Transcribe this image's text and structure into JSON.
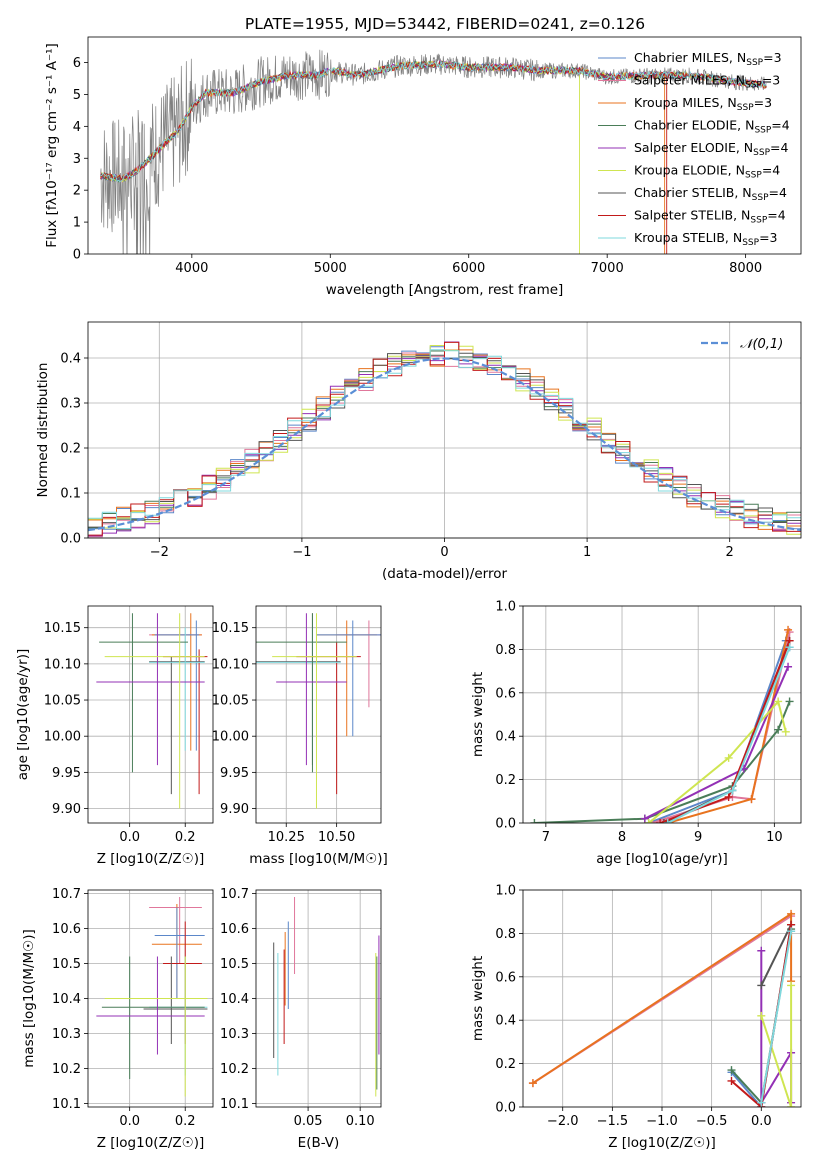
{
  "figure_title": "PLATE=1955, MJD=53442, FIBERID=0241, z=0.126",
  "colors": {
    "c1": "#5b87c9",
    "c2": "#e0779b",
    "c3": "#e8731f",
    "c4": "#4a7d58",
    "c5": "#9330b5",
    "c6": "#cfe551",
    "c7": "#555555",
    "c8": "#c21a1a",
    "c9": "#7fd8dd",
    "gray": "#808080",
    "cyan": "#7fd3d8"
  },
  "chart_data": [
    {
      "type": "line",
      "xlabel": "wavelength [Angstrom, rest frame]",
      "ylabel": "Flux [fλ10⁻¹⁷ erg cm⁻² s⁻¹ A⁻¹]",
      "xlim": [
        3250,
        8400
      ],
      "ylim": [
        0,
        6.8
      ],
      "xticks": [
        4000,
        5000,
        6000,
        7000,
        8000
      ],
      "yticks": [
        0,
        1,
        2,
        3,
        4,
        5,
        6
      ],
      "legend_position": "top-right",
      "grid": false,
      "continuum": [
        [
          3340,
          2.45
        ],
        [
          3500,
          2.35
        ],
        [
          3600,
          2.6
        ],
        [
          3700,
          3.0
        ],
        [
          3800,
          3.45
        ],
        [
          3900,
          3.85
        ],
        [
          4000,
          4.6
        ],
        [
          4100,
          5.05
        ],
        [
          4300,
          5.05
        ],
        [
          4500,
          5.4
        ],
        [
          4700,
          5.6
        ],
        [
          4900,
          5.6
        ],
        [
          5000,
          5.75
        ],
        [
          5200,
          5.6
        ],
        [
          5500,
          5.9
        ],
        [
          5800,
          5.95
        ],
        [
          6000,
          5.85
        ],
        [
          6300,
          5.85
        ],
        [
          6500,
          5.75
        ],
        [
          6800,
          5.75
        ],
        [
          7000,
          5.55
        ],
        [
          7300,
          5.6
        ],
        [
          7600,
          5.6
        ],
        [
          7900,
          5.4
        ],
        [
          8150,
          5.3
        ]
      ],
      "series": [
        {
          "name": "Chabrier MILES, N_SSP=3",
          "color": "#5b87c9"
        },
        {
          "name": "Salpeter MILES, N_SSP=3",
          "color": "#e0779b"
        },
        {
          "name": "Kroupa MILES, N_SSP=3",
          "color": "#e8731f"
        },
        {
          "name": "Chabrier ELODIE, N_SSP=4",
          "color": "#4a7d58"
        },
        {
          "name": "Salpeter ELODIE, N_SSP=4",
          "color": "#9330b5"
        },
        {
          "name": "Kroupa ELODIE, N_SSP=4",
          "color": "#cfe551"
        },
        {
          "name": "Chabrier STELIB, N_SSP=4",
          "color": "#555555"
        },
        {
          "name": "Salpeter STELIB, N_SSP=4",
          "color": "#c21a1a"
        },
        {
          "name": "Kroupa STELIB, N_SSP=3",
          "color": "#7fd8dd"
        }
      ]
    },
    {
      "type": "line",
      "xlabel": "(data-model)/error",
      "ylabel": "Normed distribution",
      "xlim": [
        -2.5,
        2.5
      ],
      "ylim": [
        0,
        0.48
      ],
      "xticks": [
        -2,
        -1,
        0,
        1,
        2
      ],
      "yticks": [
        0.0,
        0.1,
        0.2,
        0.3,
        0.4
      ],
      "grid": true,
      "legend": "𝒩(0,1)",
      "legend_position": "top-right",
      "normal_curve": {
        "mu": 0,
        "sigma": 1,
        "color": "#5b8fd6"
      }
    },
    {
      "type": "scatter",
      "xlabel": "Z [log10(Z/Z☉)]",
      "ylabel": "age [log10(age/yr)]",
      "xlim": [
        -0.15,
        0.3
      ],
      "ylim": [
        9.88,
        10.18
      ],
      "xticks": [
        0.0,
        0.2
      ],
      "yticks": [
        9.9,
        9.95,
        10.0,
        10.05,
        10.1,
        10.15
      ],
      "grid": true,
      "points": [
        {
          "x": 0.18,
          "y": 10.14,
          "xe": [
            0.07,
            0.26
          ],
          "ye": [
            10.14,
            10.15
          ],
          "c": "#e0779b"
        },
        {
          "x": 0.22,
          "y": 10.14,
          "xe": [
            0.08,
            0.26
          ],
          "ye": [
            9.98,
            10.17
          ],
          "c": "#e8731f"
        },
        {
          "x": 0.24,
          "y": 10.14,
          "xe": [
            0.09,
            0.25
          ],
          "ye": [
            9.98,
            10.16
          ],
          "c": "#5b87c9"
        },
        {
          "x": 0.25,
          "y": 10.11,
          "xe": [
            0.12,
            0.28
          ],
          "ye": [
            9.92,
            10.12
          ],
          "c": "#c21a1a"
        },
        {
          "x": 0.15,
          "y": 10.103,
          "xe": [
            0.07,
            0.27
          ],
          "ye": [
            9.92,
            10.11
          ],
          "c": "#555555"
        },
        {
          "x": 0.2,
          "y": 10.102,
          "xe": [
            0.07,
            0.27
          ],
          "ye": [
            9.98,
            10.15
          ],
          "c": "#7fd8dd"
        },
        {
          "x": 0.01,
          "y": 10.13,
          "xe": [
            -0.11,
            0.21
          ],
          "ye": [
            9.95,
            10.17
          ],
          "c": "#4a7d58"
        },
        {
          "x": 0.1,
          "y": 10.075,
          "xe": [
            -0.12,
            0.27
          ],
          "ye": [
            9.96,
            10.17
          ],
          "c": "#9330b5"
        },
        {
          "x": 0.18,
          "y": 10.11,
          "xe": [
            -0.09,
            0.27
          ],
          "ye": [
            9.9,
            10.17
          ],
          "c": "#cfe551"
        }
      ]
    },
    {
      "type": "scatter",
      "xlabel": "mass [log10(M/M☉)]",
      "ylabel": "",
      "xlim": [
        10.1,
        10.72
      ],
      "ylim": [
        9.88,
        10.18
      ],
      "xticks": [
        10.25,
        10.5
      ],
      "yticks": [
        9.9,
        9.95,
        10.0,
        10.05,
        10.1,
        10.15
      ],
      "grid": true,
      "points": [
        {
          "x": 10.66,
          "y": 10.14,
          "xe": [
            10.5,
            10.72
          ],
          "ye": [
            10.04,
            10.16
          ],
          "c": "#e0779b"
        },
        {
          "x": 10.55,
          "y": 10.14,
          "xe": [
            10.4,
            10.7
          ],
          "ye": [
            10.0,
            10.16
          ],
          "c": "#e8731f"
        },
        {
          "x": 10.58,
          "y": 10.14,
          "xe": [
            10.4,
            10.72
          ],
          "ye": [
            10.0,
            10.16
          ],
          "c": "#5b87c9"
        },
        {
          "x": 10.5,
          "y": 10.11,
          "xe": [
            10.3,
            10.62
          ],
          "ye": [
            9.92,
            10.13
          ],
          "c": "#c21a1a"
        },
        {
          "x": 10.38,
          "y": 10.103,
          "xe": [
            10.1,
            10.52
          ],
          "ye": [
            9.96,
            10.17
          ],
          "c": "#555555"
        },
        {
          "x": 10.38,
          "y": 10.102,
          "xe": [
            10.1,
            10.52
          ],
          "ye": [
            9.98,
            10.15
          ],
          "c": "#7fd8dd"
        },
        {
          "x": 10.38,
          "y": 10.13,
          "xe": [
            10.1,
            10.55
          ],
          "ye": [
            9.95,
            10.17
          ],
          "c": "#4a7d58"
        },
        {
          "x": 10.35,
          "y": 10.075,
          "xe": [
            10.2,
            10.55
          ],
          "ye": [
            9.96,
            10.17
          ],
          "c": "#9330b5"
        },
        {
          "x": 10.4,
          "y": 10.11,
          "xe": [
            10.18,
            10.6
          ],
          "ye": [
            9.9,
            10.17
          ],
          "c": "#cfe551"
        }
      ]
    },
    {
      "type": "line",
      "xlabel": "age [log10(age/yr)]",
      "ylabel": "mass weight",
      "xlim": [
        6.7,
        10.35
      ],
      "ylim": [
        0,
        1
      ],
      "xticks": [
        7,
        8,
        9,
        10
      ],
      "yticks": [
        0.0,
        0.2,
        0.4,
        0.6,
        0.8,
        1.0
      ],
      "grid": true,
      "series": [
        {
          "c": "#5b87c9",
          "x": [
            8.35,
            9.45,
            10.15,
            10.2
          ],
          "y": [
            0.0,
            0.15,
            0.84,
            0.81
          ]
        },
        {
          "c": "#e0779b",
          "x": [
            8.4,
            9.45,
            9.7,
            10.2
          ],
          "y": [
            0.0,
            0.12,
            0.11,
            0.88
          ]
        },
        {
          "c": "#e8731f",
          "x": [
            8.6,
            9.7,
            10.18
          ],
          "y": [
            0.0,
            0.11,
            0.89
          ]
        },
        {
          "c": "#4a7d58",
          "x": [
            6.85,
            8.3,
            9.45,
            10.05,
            10.2
          ],
          "y": [
            0.0,
            0.02,
            0.17,
            0.43,
            0.56
          ]
        },
        {
          "c": "#9330b5",
          "x": [
            8.3,
            9.6,
            10.18
          ],
          "y": [
            0.02,
            0.25,
            0.72
          ]
        },
        {
          "c": "#cfe551",
          "x": [
            8.35,
            9.4,
            10.05,
            10.15
          ],
          "y": [
            0.0,
            0.3,
            0.56,
            0.42
          ]
        },
        {
          "c": "#555555",
          "x": [
            8.55,
            9.45,
            10.2
          ],
          "y": [
            0.0,
            0.15,
            0.84
          ]
        },
        {
          "c": "#c21a1a",
          "x": [
            8.5,
            9.4,
            10.2
          ],
          "y": [
            0.0,
            0.12,
            0.84
          ]
        },
        {
          "c": "#7fd8dd",
          "x": [
            8.6,
            9.45,
            10.2
          ],
          "y": [
            0.0,
            0.15,
            0.81
          ]
        }
      ]
    },
    {
      "type": "scatter",
      "xlabel": "Z [log10(Z/Z☉)]",
      "ylabel": "mass [log10(M/M☉)]",
      "xlim": [
        -0.15,
        0.3
      ],
      "ylim": [
        10.09,
        10.71
      ],
      "xticks": [
        0.0,
        0.2
      ],
      "yticks": [
        10.1,
        10.2,
        10.3,
        10.4,
        10.5,
        10.6,
        10.7
      ],
      "grid": true,
      "points": [
        {
          "x": 0.18,
          "y": 10.66,
          "xe": [
            0.07,
            0.26
          ],
          "ye": [
            10.5,
            10.69
          ],
          "c": "#e0779b"
        },
        {
          "x": 0.17,
          "y": 10.555,
          "xe": [
            0.08,
            0.26
          ],
          "ye": [
            10.4,
            10.67
          ],
          "c": "#e8731f"
        },
        {
          "x": 0.17,
          "y": 10.58,
          "xe": [
            0.09,
            0.27
          ],
          "ye": [
            10.4,
            10.66
          ],
          "c": "#5b87c9"
        },
        {
          "x": 0.2,
          "y": 10.5,
          "xe": [
            0.12,
            0.26
          ],
          "ye": [
            10.27,
            10.62
          ],
          "c": "#c21a1a"
        },
        {
          "x": 0.15,
          "y": 10.37,
          "xe": [
            0.05,
            0.28
          ],
          "ye": [
            10.27,
            10.52
          ],
          "c": "#555555"
        },
        {
          "x": 0.2,
          "y": 10.375,
          "xe": [
            0.07,
            0.28
          ],
          "ye": [
            10.18,
            10.52
          ],
          "c": "#7fd8dd"
        },
        {
          "x": 0.0,
          "y": 10.375,
          "xe": [
            -0.1,
            0.27
          ],
          "ye": [
            10.17,
            10.52
          ],
          "c": "#4a7d58"
        },
        {
          "x": 0.1,
          "y": 10.35,
          "xe": [
            -0.12,
            0.27
          ],
          "ye": [
            10.24,
            10.52
          ],
          "c": "#9330b5"
        },
        {
          "x": 0.2,
          "y": 10.4,
          "xe": [
            -0.09,
            0.28
          ],
          "ye": [
            10.12,
            10.52
          ],
          "c": "#cfe551"
        }
      ]
    },
    {
      "type": "scatter",
      "xlabel": "E(B-V)",
      "ylabel": "",
      "xlim": [
        0.0,
        0.12
      ],
      "ylim": [
        10.09,
        10.71
      ],
      "xticks": [
        0.05,
        0.1
      ],
      "yticks": [
        10.1,
        10.2,
        10.3,
        10.4,
        10.5,
        10.6,
        10.7
      ],
      "grid": true,
      "points": [
        {
          "x": 0.037,
          "y": 10.66,
          "ye": [
            10.47,
            10.69
          ],
          "c": "#e0779b"
        },
        {
          "x": 0.028,
          "y": 10.555,
          "ye": [
            10.38,
            10.59
          ],
          "c": "#e8731f"
        },
        {
          "x": 0.031,
          "y": 10.58,
          "ye": [
            10.37,
            10.62
          ],
          "c": "#5b87c9"
        },
        {
          "x": 0.027,
          "y": 10.5,
          "ye": [
            10.27,
            10.54
          ],
          "c": "#c21a1a"
        },
        {
          "x": 0.017,
          "y": 10.37,
          "ye": [
            10.23,
            10.56
          ],
          "c": "#555555"
        },
        {
          "x": 0.021,
          "y": 10.375,
          "ye": [
            10.18,
            10.53
          ],
          "c": "#7fd8dd"
        },
        {
          "x": 0.116,
          "y": 10.375,
          "ye": [
            10.14,
            10.52
          ],
          "c": "#4a7d58"
        },
        {
          "x": 0.118,
          "y": 10.35,
          "ye": [
            10.24,
            10.58
          ],
          "c": "#9330b5"
        },
        {
          "x": 0.115,
          "y": 10.4,
          "ye": [
            10.12,
            10.53
          ],
          "c": "#cfe551"
        }
      ]
    },
    {
      "type": "line",
      "xlabel": "Z [log10(Z/Z☉)]",
      "ylabel": "mass weight",
      "xlim": [
        -2.4,
        0.4
      ],
      "ylim": [
        0,
        1
      ],
      "xticks": [
        -2.0,
        -1.5,
        -1.0,
        -0.5,
        0.0
      ],
      "yticks": [
        0.0,
        0.2,
        0.4,
        0.6,
        0.8,
        1.0
      ],
      "grid": true,
      "series": [
        {
          "c": "#5b87c9",
          "x": [
            -0.3,
            0.0,
            0.3,
            0.3
          ],
          "y": [
            0.16,
            0.0,
            0.84,
            0.81
          ]
        },
        {
          "c": "#e0779b",
          "x": [
            -2.3,
            0.3
          ],
          "y": [
            0.11,
            0.88
          ]
        },
        {
          "c": "#e8731f",
          "x": [
            -2.3,
            0.3,
            0.3
          ],
          "y": [
            0.11,
            0.89,
            0.58
          ]
        },
        {
          "c": "#4a7d58",
          "x": [
            -0.3,
            0.0,
            0.3
          ],
          "y": [
            0.17,
            0.02,
            0.82
          ]
        },
        {
          "c": "#9330b5",
          "x": [
            0.0,
            0.0,
            0.3,
            0.3
          ],
          "y": [
            0.72,
            0.02,
            0.25,
            0.02
          ]
        },
        {
          "c": "#cfe551",
          "x": [
            0.0,
            0.3,
            0.3
          ],
          "y": [
            0.42,
            0.0,
            0.56
          ]
        },
        {
          "c": "#555555",
          "x": [
            0.0,
            0.3
          ],
          "y": [
            0.56,
            0.84
          ]
        },
        {
          "c": "#c21a1a",
          "x": [
            -0.3,
            0.0,
            0.3
          ],
          "y": [
            0.12,
            0.0,
            0.84
          ]
        },
        {
          "c": "#7fd8dd",
          "x": [
            0.0,
            0.3
          ],
          "y": [
            0.02,
            0.81
          ]
        }
      ]
    }
  ]
}
